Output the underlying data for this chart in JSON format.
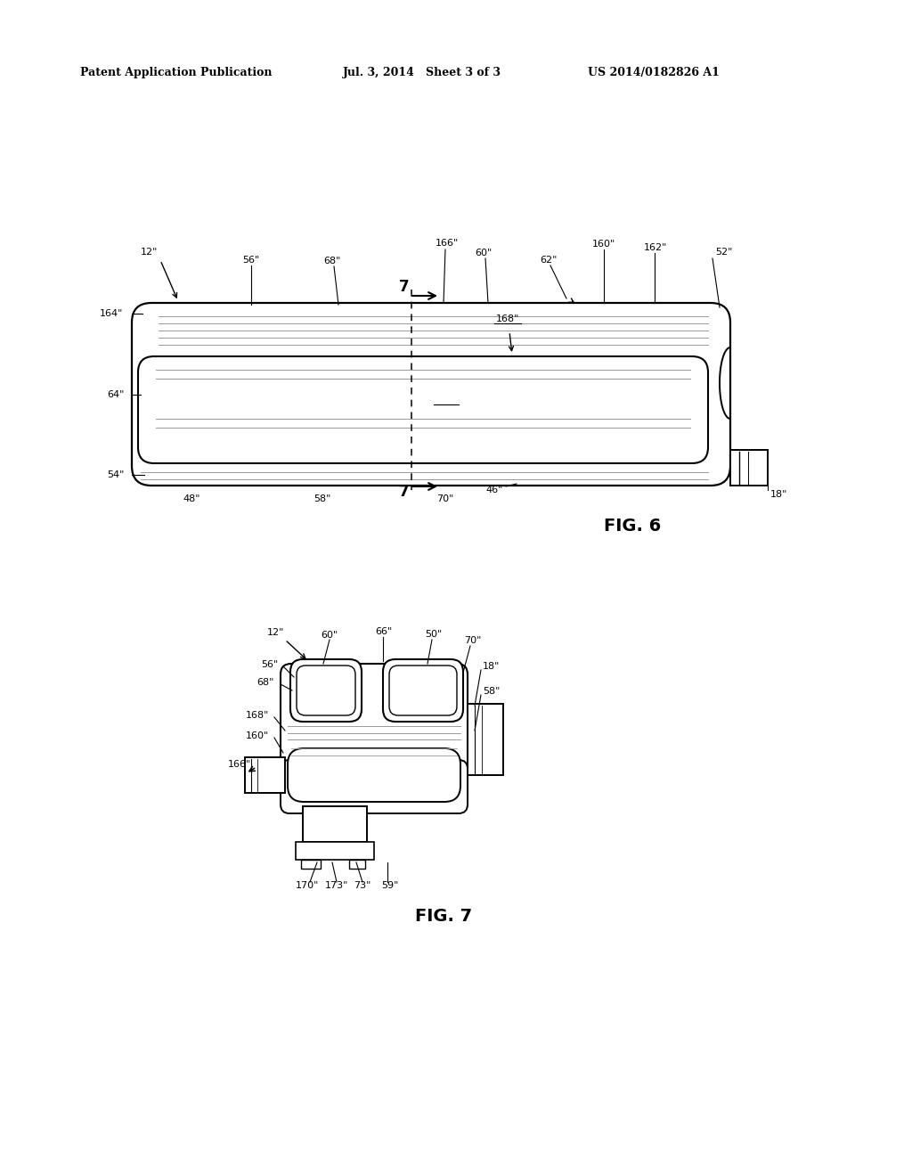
{
  "bg_color": "#ffffff",
  "header_left": "Patent Application Publication",
  "header_mid": "Jul. 3, 2014   Sheet 3 of 3",
  "header_right": "US 2014/0182826 A1",
  "fig6_label": "FIG. 6",
  "fig7_label": "FIG. 7",
  "line_color": "#000000",
  "gray_color": "#999999"
}
